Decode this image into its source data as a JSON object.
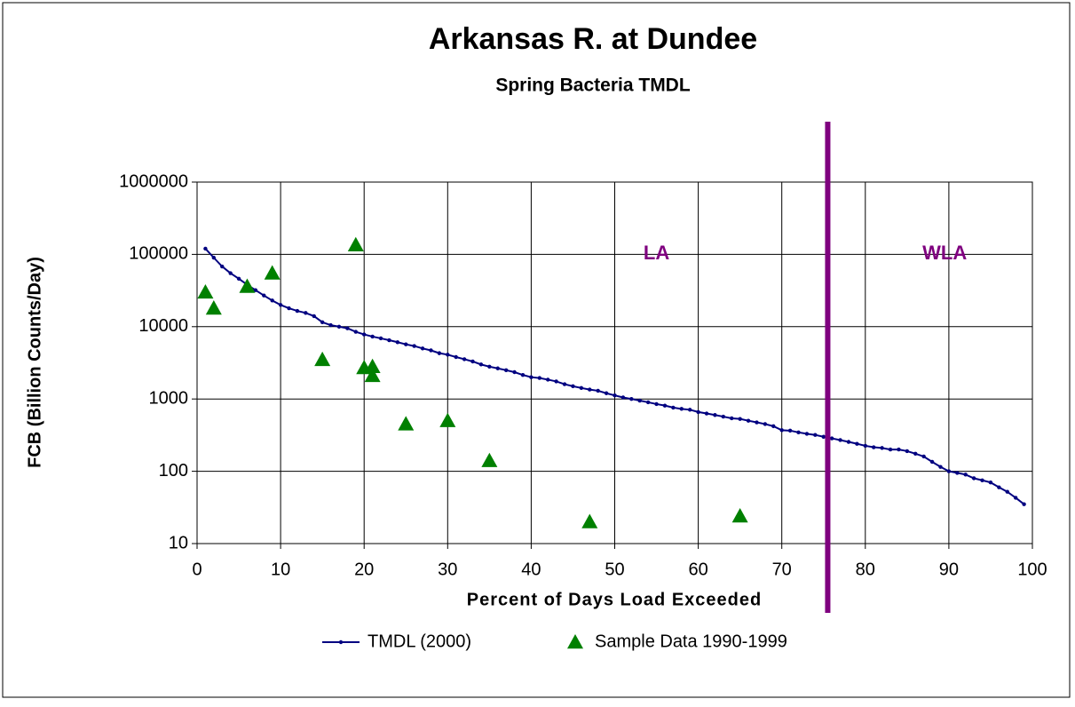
{
  "chart_data": {
    "type": "line",
    "title": "Arkansas R. at Dundee",
    "subtitle": "Spring Bacteria TMDL",
    "x_label": "Percent of Days Load Exceeded",
    "y_label": "FCB (Billion Counts/Day)",
    "xlim": [
      0,
      100
    ],
    "xticks": [
      0,
      10,
      20,
      30,
      40,
      50,
      60,
      70,
      80,
      90,
      100
    ],
    "ylim": [
      10,
      1000000
    ],
    "yticks": [
      10,
      100,
      1000,
      10000,
      100000,
      1000000
    ],
    "log_y": true,
    "grid": true,
    "divider_x": 75.5,
    "divider_color": "#7f007f",
    "annotations": [
      {
        "text": "LA",
        "x": 55,
        "y": 100000
      },
      {
        "text": "WLA",
        "x": 89.5,
        "y": 100000
      }
    ],
    "legend": "bottom",
    "series": [
      {
        "name": "TMDL (2000)",
        "color": "#000080",
        "marker": "dot",
        "x": [
          1,
          2,
          3,
          4,
          5,
          6,
          7,
          8,
          9,
          10,
          11,
          12,
          13,
          14,
          15,
          16,
          17,
          18,
          19,
          20,
          21,
          22,
          23,
          24,
          25,
          26,
          27,
          28,
          29,
          30,
          31,
          32,
          33,
          34,
          35,
          36,
          37,
          38,
          39,
          40,
          41,
          42,
          43,
          44,
          45,
          46,
          47,
          48,
          49,
          50,
          51,
          52,
          53,
          54,
          55,
          56,
          57,
          58,
          59,
          60,
          61,
          62,
          63,
          64,
          65,
          66,
          67,
          68,
          69,
          70,
          71,
          72,
          73,
          74,
          75,
          76,
          77,
          78,
          79,
          80,
          81,
          82,
          83,
          84,
          85,
          86,
          87,
          88,
          89,
          90,
          91,
          92,
          93,
          94,
          95,
          96,
          97,
          98,
          99
        ],
        "values": [
          120000,
          90000,
          68000,
          55000,
          46000,
          38000,
          32000,
          27000,
          23000,
          20000,
          18000,
          16500,
          15500,
          14000,
          11500,
          10500,
          10000,
          9500,
          8500,
          7800,
          7300,
          6900,
          6500,
          6100,
          5700,
          5400,
          5000,
          4700,
          4300,
          4100,
          3800,
          3550,
          3300,
          3000,
          2800,
          2650,
          2500,
          2350,
          2150,
          2000,
          1950,
          1850,
          1750,
          1600,
          1500,
          1420,
          1350,
          1300,
          1200,
          1120,
          1050,
          1000,
          950,
          900,
          850,
          810,
          760,
          730,
          710,
          660,
          630,
          600,
          570,
          540,
          530,
          500,
          475,
          450,
          420,
          370,
          365,
          345,
          330,
          318,
          300,
          285,
          270,
          255,
          240,
          225,
          215,
          210,
          200,
          200,
          190,
          175,
          160,
          135,
          115,
          100,
          95,
          90,
          80,
          75,
          70,
          60,
          52,
          43,
          35
        ]
      },
      {
        "name": "Sample Data 1990-1999",
        "color": "#008000",
        "marker": "triangle",
        "x": [
          1,
          2,
          6,
          9,
          15,
          19,
          20,
          21,
          21,
          25,
          30,
          35,
          47,
          65
        ],
        "values": [
          30000,
          18000,
          36000,
          55000,
          3500,
          135000,
          2700,
          2800,
          2100,
          450,
          500,
          140,
          20,
          24
        ]
      }
    ]
  }
}
